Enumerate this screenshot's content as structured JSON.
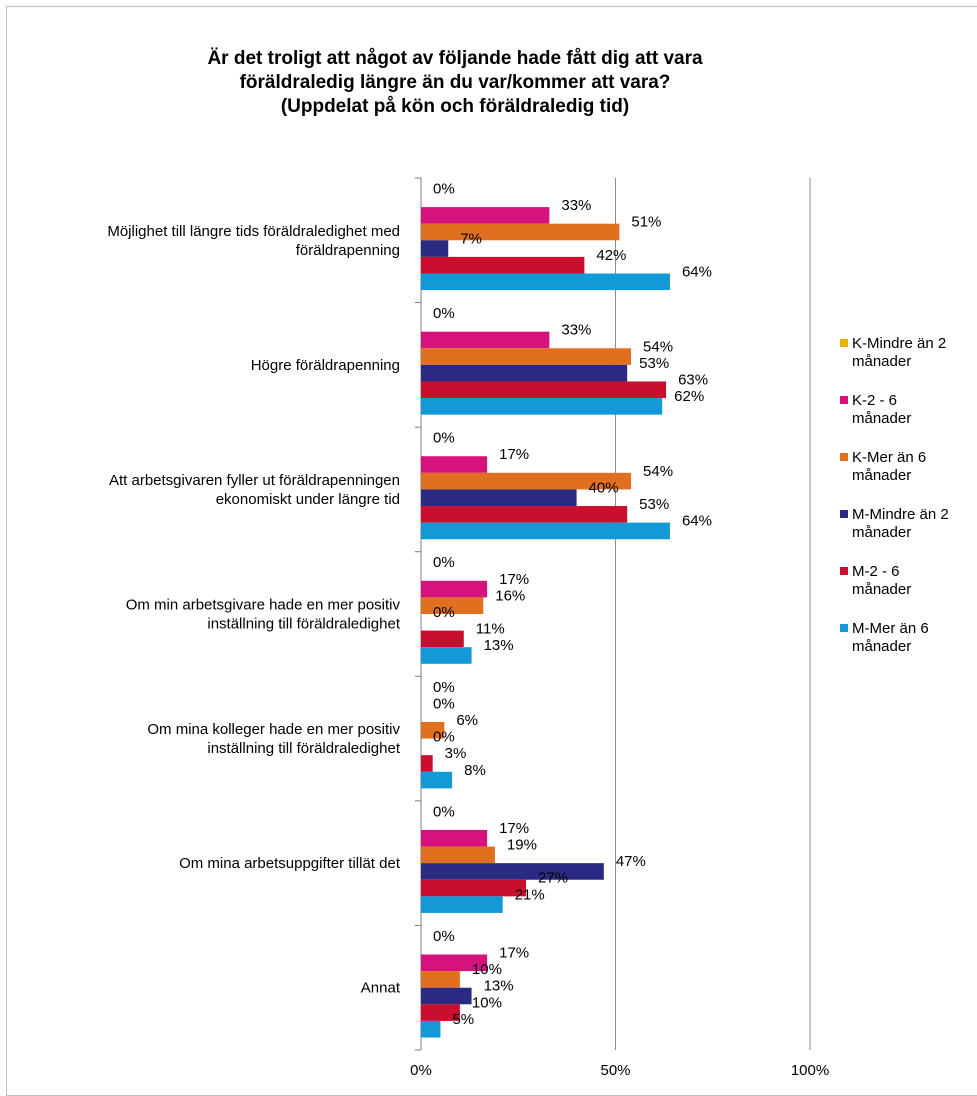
{
  "chart_data": {
    "type": "bar",
    "orientation": "horizontal",
    "title_lines": [
      "Är det troligt att något av följande hade fått dig att vara",
      "föräldraledig längre än du var/kommer att vara?",
      "(Uppdelat på kön och föräldraledig tid)"
    ],
    "categories": [
      [
        "Möjlighet till längre tids föräldraledighet med",
        "föräldrapenning"
      ],
      [
        "Högre föräldrapenning"
      ],
      [
        "Att arbetsgivaren fyller ut föräldrapenningen",
        "ekonomiskt under längre tid"
      ],
      [
        "Om min arbetsgivare hade en mer positiv",
        "inställning till föräldraledighet"
      ],
      [
        "Om mina kolleger hade en mer positiv",
        "inställning till föräldraledighet"
      ],
      [
        "Om mina arbetsuppgifter tillät det"
      ],
      [
        "Annat"
      ]
    ],
    "series": [
      {
        "name": "K-Mindre än 2 månader",
        "legend_lines": [
          "K-Mindre än 2",
          "månader"
        ],
        "color": "#e8b400",
        "values": [
          0,
          0,
          0,
          0,
          0,
          0,
          0
        ]
      },
      {
        "name": "K-2 - 6 månader",
        "legend_lines": [
          "K-2 - 6",
          "månader"
        ],
        "color": "#d6127d",
        "values": [
          33,
          33,
          17,
          17,
          0,
          17,
          17
        ]
      },
      {
        "name": "K-Mer än 6 månader",
        "legend_lines": [
          "K-Mer än 6",
          "månader"
        ],
        "color": "#e07020",
        "values": [
          51,
          54,
          54,
          16,
          6,
          19,
          10
        ]
      },
      {
        "name": "M-Mindre än 2 månader",
        "legend_lines": [
          "M-Mindre än 2",
          "månader"
        ],
        "color": "#2b2a82",
        "values": [
          7,
          53,
          40,
          0,
          0,
          47,
          13
        ]
      },
      {
        "name": "M-2 - 6 månader",
        "legend_lines": [
          "M-2 - 6",
          "månader"
        ],
        "color": "#c8102e",
        "values": [
          42,
          63,
          53,
          11,
          3,
          27,
          10
        ]
      },
      {
        "name": "M-Mer än 6 månader",
        "legend_lines": [
          "M-Mer än 6",
          "månader"
        ],
        "color": "#139ad6",
        "values": [
          64,
          62,
          64,
          13,
          8,
          21,
          5
        ]
      }
    ],
    "xlim": [
      0,
      100
    ],
    "x_ticks": [
      "0%",
      "50%",
      "100%"
    ],
    "value_suffix": "%",
    "grid": "vertical",
    "legend_position": "right"
  }
}
